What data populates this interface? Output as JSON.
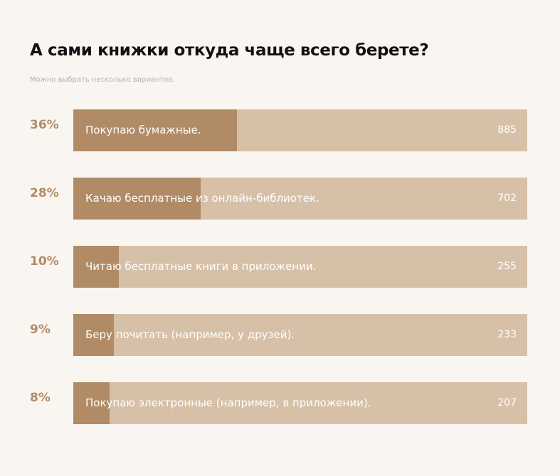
{
  "chart_data": {
    "type": "bar",
    "title": "А сами книжки откуда чаще всего берете?",
    "subtitle": "Можно выбрать несколько вариантов.",
    "orientation": "horizontal",
    "categories": [
      "Покупаю бумажные.",
      "Качаю бесплатные из онлайн-библиотек.",
      "Читаю бесплатные книги в приложении.",
      "Беру почитать (например, у друзей).",
      "Покупаю электронные (например, в приложении)."
    ],
    "percent_labels": [
      "36%",
      "28%",
      "10%",
      "9%",
      "8%"
    ],
    "percents": [
      36,
      28,
      10,
      9,
      8
    ],
    "values": [
      885,
      702,
      255,
      233,
      207
    ],
    "count_labels": [
      "885",
      "702",
      "255",
      "233",
      "207"
    ],
    "colors": {
      "fill": "#b08b65",
      "track": "#d7c0a8",
      "percent_text": "#b38b63",
      "background": "#f9f6f2"
    }
  }
}
